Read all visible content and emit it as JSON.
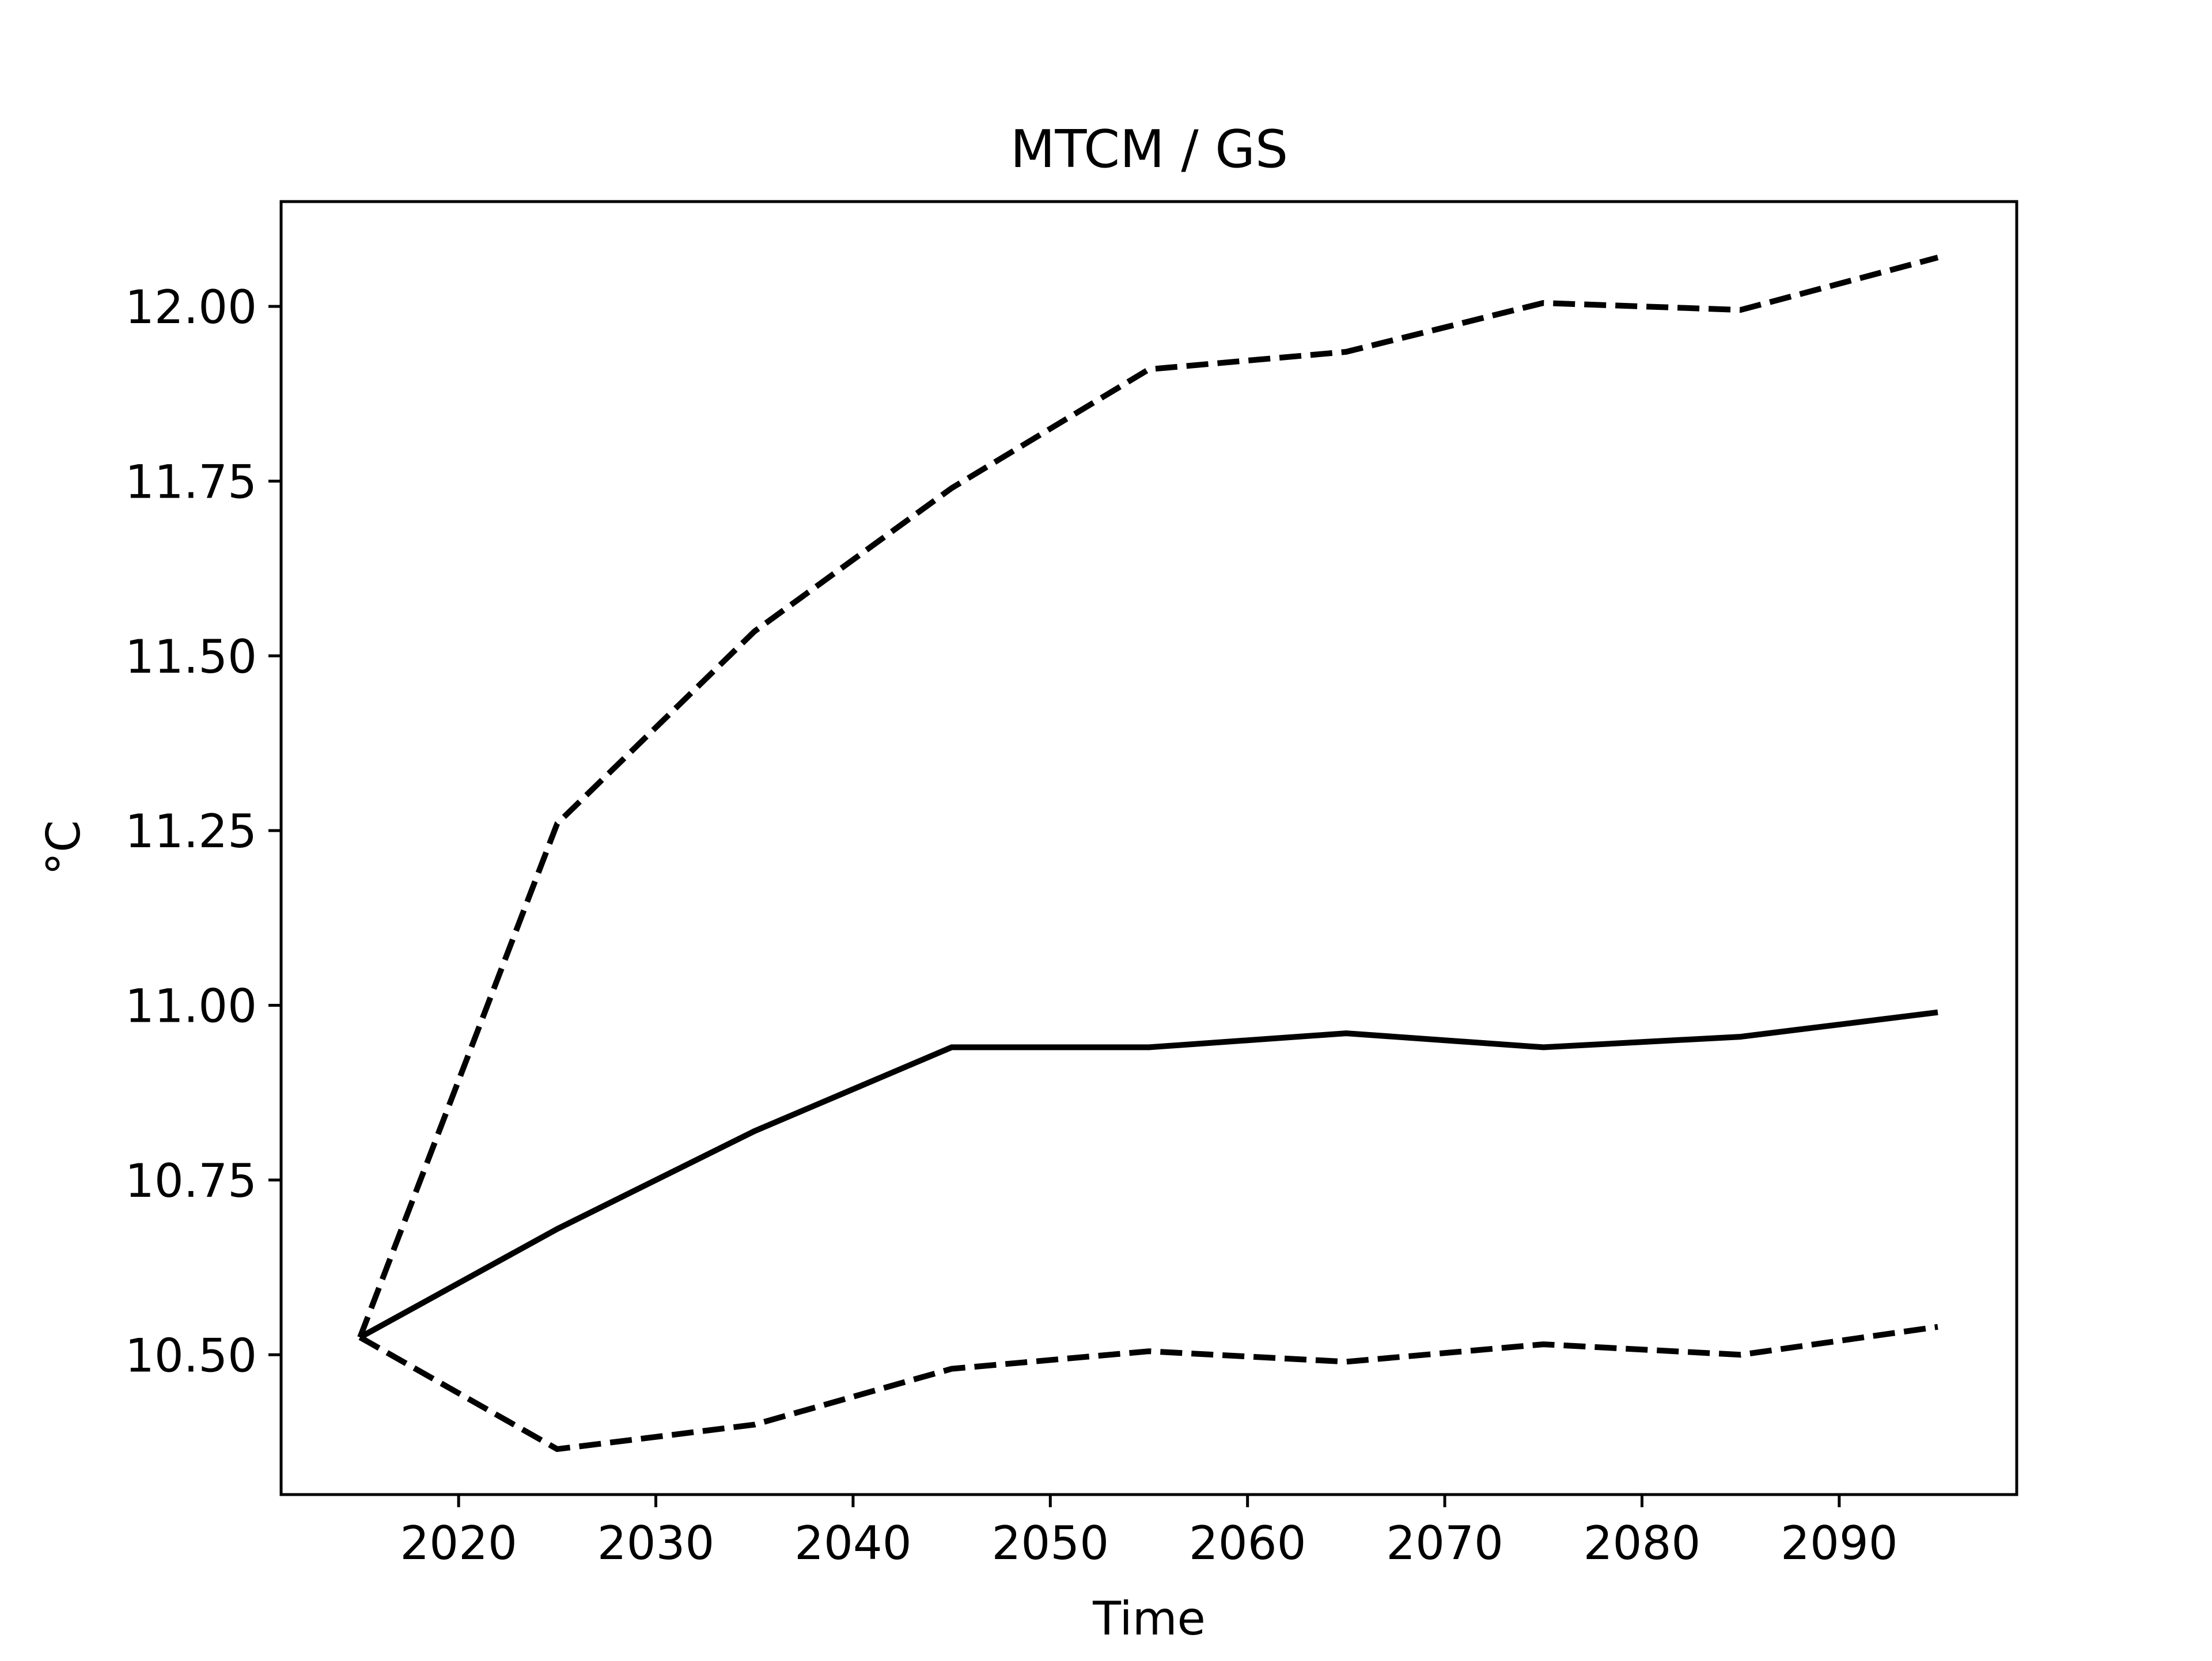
{
  "chart_data": {
    "type": "line",
    "title": "MTCM / GS",
    "xlabel": "Time",
    "ylabel": "°C",
    "xlim": [
      2011,
      2099
    ],
    "ylim": [
      10.3,
      12.15
    ],
    "grid": false,
    "legend": "none",
    "xticks": [
      2020,
      2030,
      2040,
      2050,
      2060,
      2070,
      2080,
      2090
    ],
    "xtick_labels": [
      "2020",
      "2030",
      "2040",
      "2050",
      "2060",
      "2070",
      "2080",
      "2090"
    ],
    "yticks": [
      10.5,
      10.75,
      11.0,
      11.25,
      11.5,
      11.75,
      12.0
    ],
    "ytick_labels": [
      "10.50",
      "10.75",
      "11.00",
      "11.25",
      "11.50",
      "11.75",
      "12.00"
    ],
    "x": [
      2015,
      2025,
      2035,
      2045,
      2055,
      2065,
      2075,
      2085,
      2095
    ],
    "series": [
      {
        "style": "dashed",
        "color": "#000000",
        "values": [
          10.525,
          11.26,
          11.535,
          11.74,
          11.91,
          11.935,
          12.005,
          11.995,
          12.07
        ]
      },
      {
        "style": "solid",
        "color": "#000000",
        "values": [
          10.525,
          10.68,
          10.82,
          10.94,
          10.94,
          10.96,
          10.94,
          10.955,
          10.99
        ]
      },
      {
        "style": "dashed",
        "color": "#000000",
        "values": [
          10.525,
          10.365,
          10.4,
          10.48,
          10.505,
          10.49,
          10.515,
          10.5,
          10.54
        ]
      }
    ]
  }
}
